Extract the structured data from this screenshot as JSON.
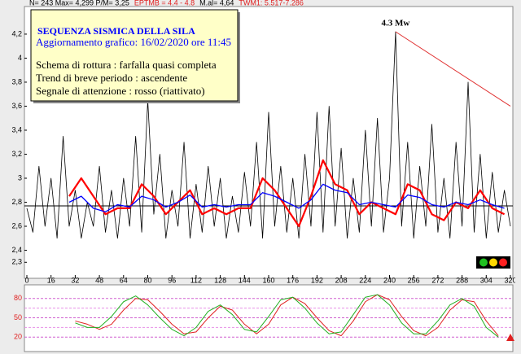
{
  "chart_data": [
    {
      "type": "line",
      "header": [
        {
          "text": "N= 243 Max= 4,299 P/M= 3,25",
          "color": "#000000"
        },
        {
          "text": "EPTMB = 4.4 - 4.8",
          "color": "#e02020"
        },
        {
          "text": "M.al= 4,64",
          "color": "#000000"
        },
        {
          "text": "TWM1: 5.517-7.286",
          "color": "#e02020"
        }
      ],
      "info_box": {
        "title": "SEQUENZA SISMICA  DELLA SILA",
        "subtitle": "Aggiornamento grafico: 16/02/2020 ore 11:45",
        "lines": [
          "Schema di rottura : farfalla quasi completa",
          "Trend di breve periodo : ascendente",
          "Segnale di attenzione : rosso (riattivato)"
        ]
      },
      "annotation": "4.3 Mw",
      "trend_line": {
        "x": [
          244,
          320
        ],
        "y": [
          4.22,
          3.6
        ],
        "color": "#e03030"
      },
      "reference_line": 2.77,
      "xlim": [
        0,
        320
      ],
      "xticks": [
        0,
        16,
        32,
        48,
        64,
        80,
        96,
        112,
        128,
        144,
        160,
        176,
        192,
        208,
        224,
        240,
        256,
        272,
        288,
        304,
        320
      ],
      "ylim": [
        2.18,
        4.43
      ],
      "yticks": [
        {
          "value": 2.3,
          "label": "2,3"
        },
        {
          "value": 2.4,
          "label": "2,4"
        },
        {
          "value": 2.6,
          "label": "2,6"
        },
        {
          "value": 2.8,
          "label": "2,8"
        },
        3,
        {
          "value": 3.2,
          "label": "3,2"
        },
        {
          "value": 3.4,
          "label": "3,4"
        },
        {
          "value": 3.6,
          "label": "3,6"
        },
        {
          "value": 3.8,
          "label": "3,8"
        },
        4,
        {
          "value": 4.2,
          "label": "4,2"
        }
      ],
      "series": [
        {
          "color": "#000000",
          "width": 0.8,
          "x": [
            0,
            4,
            8,
            12,
            16,
            20,
            24,
            28,
            32,
            36,
            40,
            44,
            48,
            52,
            56,
            60,
            64,
            68,
            72,
            76,
            80,
            84,
            88,
            92,
            96,
            100,
            104,
            108,
            112,
            116,
            120,
            124,
            128,
            132,
            136,
            140,
            144,
            148,
            152,
            156,
            160,
            164,
            168,
            172,
            176,
            180,
            184,
            188,
            192,
            196,
            200,
            204,
            208,
            212,
            216,
            220,
            224,
            228,
            232,
            236,
            240,
            244,
            248,
            252,
            256,
            260,
            264,
            268,
            272,
            276,
            280,
            284,
            288,
            292,
            296,
            300,
            304,
            308,
            312,
            316,
            320
          ],
          "values": [
            2.75,
            2.55,
            3.1,
            2.6,
            3.0,
            2.5,
            3.35,
            2.6,
            2.9,
            2.5,
            2.8,
            2.6,
            3.1,
            2.55,
            2.9,
            2.5,
            3.0,
            2.6,
            3.35,
            2.55,
            3.65,
            2.7,
            3.2,
            2.5,
            2.9,
            2.6,
            3.3,
            2.5,
            2.95,
            2.55,
            3.1,
            2.6,
            3.0,
            2.5,
            2.85,
            2.55,
            3.05,
            2.6,
            3.3,
            2.5,
            3.55,
            2.6,
            3.1,
            2.55,
            3.0,
            2.5,
            3.2,
            2.6,
            3.55,
            2.55,
            3.6,
            2.6,
            3.25,
            2.5,
            3.0,
            2.55,
            3.4,
            2.6,
            3.5,
            2.55,
            3.0,
            4.22,
            2.6,
            3.3,
            2.5,
            3.1,
            2.6,
            3.45,
            2.55,
            3.0,
            2.5,
            3.3,
            2.6,
            3.8,
            2.55,
            3.2,
            2.5,
            3.05,
            2.55,
            2.9,
            2.6
          ]
        },
        {
          "color": "#ff0000",
          "width": 2.2,
          "x": [
            28,
            36,
            44,
            52,
            60,
            68,
            76,
            84,
            92,
            100,
            108,
            116,
            124,
            132,
            140,
            148,
            156,
            164,
            172,
            180,
            188,
            196,
            204,
            212,
            220,
            228,
            236,
            244,
            252,
            260,
            268,
            276,
            284,
            292,
            300,
            308,
            316
          ],
          "values": [
            2.85,
            3.0,
            2.85,
            2.7,
            2.75,
            2.75,
            2.95,
            2.85,
            2.7,
            2.8,
            2.9,
            2.7,
            2.75,
            2.7,
            2.75,
            2.75,
            3.0,
            2.9,
            2.75,
            2.6,
            2.85,
            3.15,
            2.95,
            2.9,
            2.7,
            2.8,
            2.75,
            2.7,
            2.95,
            2.9,
            2.7,
            2.65,
            2.8,
            2.75,
            2.9,
            2.75,
            2.7
          ]
        },
        {
          "color": "#0000ff",
          "width": 1.3,
          "x": [
            28,
            36,
            44,
            52,
            60,
            68,
            76,
            84,
            92,
            100,
            108,
            116,
            124,
            132,
            140,
            148,
            156,
            164,
            172,
            180,
            188,
            196,
            204,
            212,
            220,
            228,
            236,
            244,
            252,
            260,
            268,
            276,
            284,
            292,
            300,
            308,
            316
          ],
          "values": [
            2.8,
            2.85,
            2.75,
            2.72,
            2.78,
            2.76,
            2.85,
            2.82,
            2.76,
            2.8,
            2.86,
            2.76,
            2.78,
            2.76,
            2.78,
            2.78,
            2.88,
            2.85,
            2.8,
            2.75,
            2.82,
            2.95,
            2.9,
            2.88,
            2.78,
            2.8,
            2.78,
            2.76,
            2.86,
            2.84,
            2.78,
            2.76,
            2.8,
            2.78,
            2.82,
            2.78,
            2.75
          ]
        }
      ]
    },
    {
      "type": "line",
      "xlim": [
        0,
        320
      ],
      "ylim": [
        0,
        100
      ],
      "yticks": [
        20,
        50,
        80
      ],
      "extra_grid": [
        65,
        35
      ],
      "series": [
        {
          "color": "#e02020",
          "width": 1,
          "x": [
            32,
            40,
            48,
            56,
            64,
            72,
            80,
            88,
            96,
            104,
            112,
            120,
            128,
            136,
            144,
            152,
            160,
            168,
            176,
            184,
            192,
            200,
            208,
            216,
            224,
            232,
            240,
            248,
            256,
            264,
            272,
            280,
            288,
            296,
            304,
            312
          ],
          "values": [
            45,
            40,
            32,
            40,
            62,
            80,
            78,
            60,
            40,
            25,
            28,
            50,
            68,
            62,
            40,
            25,
            40,
            70,
            82,
            72,
            50,
            30,
            22,
            45,
            75,
            86,
            78,
            52,
            30,
            22,
            35,
            62,
            78,
            75,
            45,
            22
          ]
        },
        {
          "color": "#20b020",
          "width": 1,
          "x": [
            32,
            40,
            48,
            56,
            64,
            72,
            80,
            88,
            96,
            104,
            112,
            120,
            128,
            136,
            144,
            152,
            160,
            168,
            176,
            184,
            192,
            200,
            208,
            216,
            224,
            232,
            240,
            248,
            256,
            264,
            272,
            280,
            288,
            296,
            304,
            312
          ],
          "values": [
            42,
            35,
            35,
            52,
            75,
            84,
            70,
            50,
            32,
            22,
            35,
            60,
            70,
            55,
            32,
            28,
            52,
            78,
            82,
            65,
            42,
            25,
            28,
            55,
            82,
            86,
            70,
            42,
            25,
            25,
            45,
            70,
            80,
            68,
            35,
            20
          ]
        }
      ]
    }
  ]
}
